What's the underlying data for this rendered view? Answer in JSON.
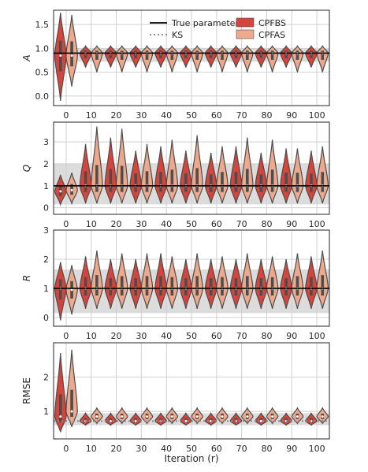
{
  "figure": {
    "xlabel": "Iteration (r)",
    "legend": {
      "position": "top-right",
      "entries": [
        {
          "label": "True parameter",
          "kind": "line"
        },
        {
          "label": "KS",
          "kind": "dotted"
        },
        {
          "label": "CPFBS",
          "kind": "patch"
        },
        {
          "label": "CPFAS",
          "kind": "patch"
        }
      ]
    },
    "colors": {
      "CPFBS": "#d6443b",
      "CPFAS": "#eea98d",
      "violin_edge": "#4d4d4d",
      "true_line": "#000000",
      "ks_dotted": "#8c8c8c",
      "band": "#dcdcdc",
      "grid": "#d0d0d0",
      "frame": "#262626"
    }
  },
  "chart_data": [
    {
      "type": "violin",
      "panel": "A",
      "ylabel": "A",
      "categories": [
        "0",
        "10",
        "20",
        "30",
        "40",
        "50",
        "60",
        "70",
        "80",
        "90",
        "100"
      ],
      "yticks": [
        0.0,
        0.5,
        1.0,
        1.5
      ],
      "ytick_labels": [
        "0.0",
        "0.5",
        "1.0",
        "1.5"
      ],
      "ylim": [
        -0.2,
        1.8
      ],
      "true_value": 0.9,
      "band": [
        0.72,
        1.0
      ],
      "series": [
        {
          "name": "CPFBS",
          "medians": [
            0.85,
            0.9,
            0.9,
            0.9,
            0.9,
            0.9,
            0.9,
            0.9,
            0.9,
            0.9,
            0.9
          ],
          "mins": [
            -0.1,
            0.6,
            0.6,
            0.6,
            0.6,
            0.6,
            0.6,
            0.6,
            0.6,
            0.6,
            0.6
          ],
          "maxs": [
            1.75,
            1.05,
            1.05,
            1.05,
            1.05,
            1.05,
            1.05,
            1.05,
            1.05,
            1.05,
            1.05
          ]
        },
        {
          "name": "CPFAS",
          "medians": [
            0.85,
            0.9,
            0.9,
            0.9,
            0.9,
            0.9,
            0.9,
            0.9,
            0.9,
            0.9,
            0.9
          ],
          "mins": [
            0.2,
            0.5,
            0.5,
            0.5,
            0.5,
            0.5,
            0.5,
            0.5,
            0.5,
            0.5,
            0.5
          ],
          "maxs": [
            1.7,
            1.05,
            1.05,
            1.05,
            1.05,
            1.05,
            1.05,
            1.05,
            1.05,
            1.05,
            1.05
          ]
        }
      ]
    },
    {
      "type": "violin",
      "panel": "Q",
      "ylabel": "Q",
      "categories": [
        "0",
        "10",
        "20",
        "30",
        "40",
        "50",
        "60",
        "70",
        "80",
        "90",
        "100"
      ],
      "yticks": [
        0,
        1,
        2,
        3
      ],
      "ytick_labels": [
        "0",
        "1",
        "2",
        "3"
      ],
      "ylim": [
        -0.3,
        3.9
      ],
      "true_value": 1.0,
      "band": [
        0.15,
        2.0
      ],
      "series": [
        {
          "name": "CPFBS",
          "medians": [
            0.75,
            1.0,
            1.0,
            1.0,
            1.0,
            1.0,
            1.0,
            1.0,
            1.0,
            1.0,
            1.0
          ],
          "mins": [
            0.15,
            0.2,
            0.2,
            0.2,
            0.2,
            0.2,
            0.2,
            0.2,
            0.2,
            0.2,
            0.2
          ],
          "maxs": [
            1.5,
            2.9,
            3.2,
            2.6,
            2.8,
            2.6,
            2.5,
            2.8,
            2.5,
            2.7,
            2.6
          ]
        },
        {
          "name": "CPFAS",
          "medians": [
            0.8,
            1.0,
            1.0,
            1.0,
            1.0,
            1.0,
            1.0,
            1.0,
            1.0,
            1.0,
            1.0
          ],
          "mins": [
            0.2,
            0.2,
            0.2,
            0.2,
            0.2,
            0.2,
            0.2,
            0.2,
            0.2,
            0.2,
            0.2
          ],
          "maxs": [
            1.6,
            3.7,
            3.6,
            2.9,
            3.1,
            3.3,
            2.8,
            3.2,
            3.1,
            2.7,
            2.8
          ]
        }
      ]
    },
    {
      "type": "violin",
      "panel": "R",
      "ylabel": "R",
      "categories": [
        "0",
        "10",
        "20",
        "30",
        "40",
        "50",
        "60",
        "70",
        "80",
        "90",
        "100"
      ],
      "yticks": [
        0,
        1,
        2,
        3
      ],
      "ytick_labels": [
        "0",
        "1",
        "2",
        "3"
      ],
      "ylim": [
        -0.3,
        3.0
      ],
      "true_value": 1.0,
      "band": [
        0.15,
        1.65
      ],
      "series": [
        {
          "name": "CPFBS",
          "medians": [
            1.0,
            1.0,
            1.0,
            1.0,
            1.0,
            1.0,
            1.0,
            1.0,
            1.0,
            1.0,
            1.0
          ],
          "mins": [
            -0.1,
            0.3,
            0.3,
            0.3,
            0.3,
            0.3,
            0.3,
            0.3,
            0.3,
            0.3,
            0.3
          ],
          "maxs": [
            1.9,
            2.1,
            2.0,
            2.0,
            2.2,
            2.0,
            2.0,
            2.0,
            2.0,
            2.0,
            2.1
          ]
        },
        {
          "name": "CPFAS",
          "medians": [
            0.95,
            1.0,
            1.0,
            1.0,
            1.0,
            1.0,
            1.0,
            1.0,
            1.0,
            1.0,
            1.0
          ],
          "mins": [
            0.1,
            0.3,
            0.3,
            0.3,
            0.3,
            0.3,
            0.3,
            0.3,
            0.3,
            0.3,
            0.3
          ],
          "maxs": [
            1.8,
            2.3,
            2.2,
            2.2,
            2.1,
            2.2,
            2.1,
            2.2,
            2.1,
            2.2,
            2.3
          ]
        }
      ]
    },
    {
      "type": "violin",
      "panel": "RMSE",
      "ylabel": "RMSE",
      "categories": [
        "0",
        "10",
        "20",
        "30",
        "40",
        "50",
        "60",
        "70",
        "80",
        "90",
        "100"
      ],
      "yticks": [
        1,
        2
      ],
      "ytick_labels": [
        "1",
        "2"
      ],
      "ylim": [
        0.2,
        3.0
      ],
      "ks_value": 0.72,
      "band": [
        0.6,
        0.95
      ],
      "series": [
        {
          "name": "CPFBS",
          "medians": [
            0.85,
            0.72,
            0.72,
            0.72,
            0.72,
            0.72,
            0.72,
            0.72,
            0.72,
            0.72,
            0.72
          ],
          "mins": [
            0.4,
            0.6,
            0.6,
            0.6,
            0.6,
            0.6,
            0.6,
            0.6,
            0.6,
            0.6,
            0.6
          ],
          "maxs": [
            2.7,
            0.95,
            0.95,
            0.95,
            0.95,
            0.95,
            0.95,
            0.95,
            0.95,
            0.95,
            0.95
          ]
        },
        {
          "name": "CPFAS",
          "medians": [
            1.0,
            0.85,
            0.85,
            0.85,
            0.85,
            0.85,
            0.85,
            0.85,
            0.85,
            0.85,
            0.85
          ],
          "mins": [
            0.55,
            0.65,
            0.65,
            0.65,
            0.65,
            0.65,
            0.65,
            0.65,
            0.65,
            0.65,
            0.65
          ],
          "maxs": [
            2.8,
            1.1,
            1.1,
            1.1,
            1.1,
            1.1,
            1.1,
            1.1,
            1.1,
            1.1,
            1.1
          ]
        }
      ]
    }
  ]
}
